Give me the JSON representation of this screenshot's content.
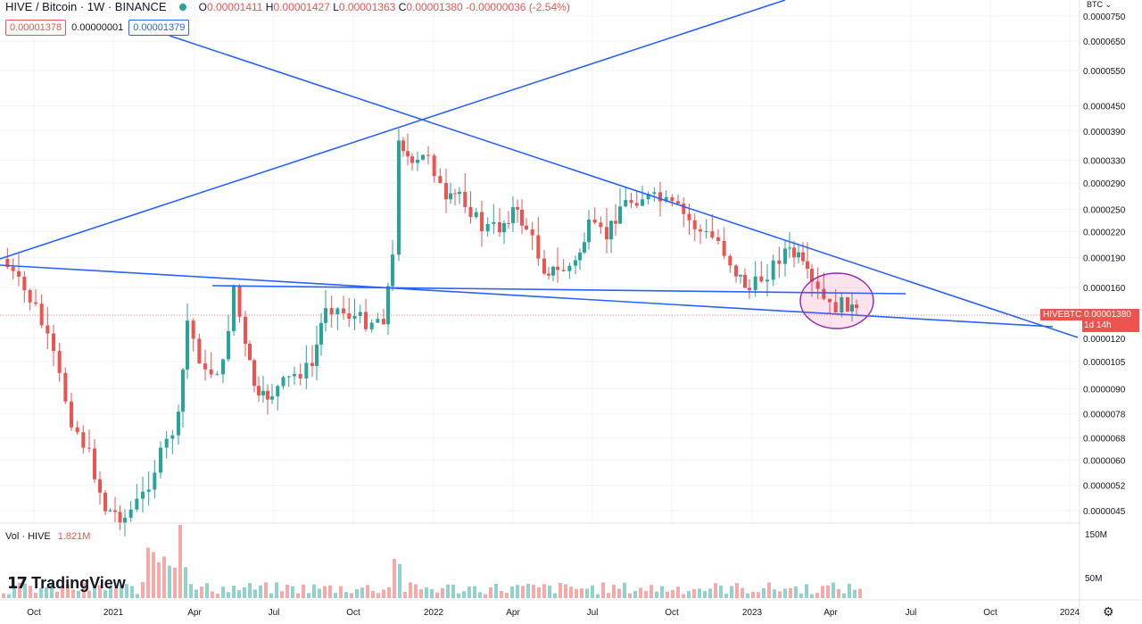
{
  "header": {
    "symbol": "HIVE / Bitcoin · 1W · BINANCE",
    "o_label": "O",
    "o": "0.00001411",
    "h_label": "H",
    "h": "0.00001427",
    "l_label": "L",
    "l": "0.00001363",
    "c_label": "C",
    "c": "0.00001380",
    "change": "-0.00000036 (-2.54%)"
  },
  "price_boxes": {
    "sell": "0.00001378",
    "spread": "0.00000001",
    "buy": "0.00001379"
  },
  "volume": {
    "label": "Vol · HIVE",
    "value": "1.821M"
  },
  "logo": {
    "text": "TradingView"
  },
  "currency": "BTC",
  "last_symbol": "HIVEBTC",
  "last_price": "0.00001380",
  "countdown": "1d 14h",
  "colors": {
    "up": "#26a69a",
    "down": "#ef5350",
    "drawing": "#2962ff",
    "ellipse": "#9c27b0"
  },
  "chart_data": {
    "type": "candlestick",
    "price_axis": [
      "0.0000750",
      "0.0000650",
      "0.0000550",
      "0.0000450",
      "0.0000390",
      "0.0000330",
      "0.0000290",
      "0.0000250",
      "0.0000220",
      "0.0000190",
      "0.0000160",
      "0.0000120",
      "0.0000105",
      "0.0000090",
      "0.0000078",
      "0.0000068",
      "0.0000060",
      "0.0000052",
      "0.0000045"
    ],
    "volume_axis": [
      "150M",
      "50M"
    ],
    "time_axis": [
      "Oct",
      "2021",
      "Apr",
      "Jul",
      "Oct",
      "2022",
      "Apr",
      "Jul",
      "Oct",
      "2023",
      "Apr",
      "Jul",
      "Oct",
      "2024"
    ],
    "last_price": 1.38e-05,
    "volume_last": "1.821M",
    "annotations": [
      "trend lines",
      "ellipse highlight"
    ]
  }
}
